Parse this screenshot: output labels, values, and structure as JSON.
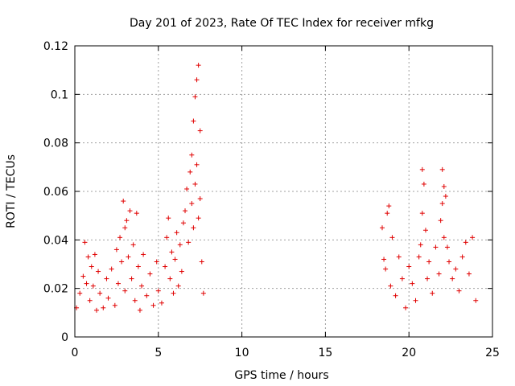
{
  "chart_data": {
    "type": "scatter",
    "title": "Day 201 of 2023, Rate Of TEC Index for receiver mfkg",
    "xlabel": "GPS time / hours",
    "ylabel": "ROTI / TECUs",
    "xlim": [
      0,
      25
    ],
    "ylim": [
      0,
      0.12
    ],
    "x_ticks": [
      "0",
      "5",
      "10",
      "15",
      "20",
      "25"
    ],
    "y_ticks": [
      "0",
      "0.02",
      "0.04",
      "0.06",
      "0.08",
      "0.1",
      "0.12"
    ],
    "grid": true,
    "marker": "+",
    "colors": {
      "points": "#e00000"
    },
    "series": [
      {
        "x": [
          0.1,
          0.3,
          0.5,
          0.6,
          0.7,
          0.8,
          0.9,
          1.0,
          1.1,
          1.2,
          1.3,
          1.4,
          1.5,
          1.7,
          1.9,
          2.0,
          2.2,
          2.4,
          2.5,
          2.6,
          2.7,
          2.8,
          2.9,
          3.0,
          3.0,
          3.1,
          3.2,
          3.3,
          3.4,
          3.5,
          3.6,
          3.7,
          3.8,
          3.9,
          4.0,
          4.1,
          4.3,
          4.5,
          4.7,
          4.9,
          5.0,
          5.2,
          5.4,
          5.5,
          5.6,
          5.7,
          5.8,
          5.9,
          6.0,
          6.1,
          6.2,
          6.3,
          6.4,
          6.5,
          6.6,
          6.7,
          6.8,
          6.9,
          7.0,
          7.0,
          7.1,
          7.1,
          7.2,
          7.2,
          7.3,
          7.3,
          7.4,
          7.4,
          7.5,
          7.5,
          7.6,
          7.7,
          18.4,
          18.5,
          18.6,
          18.7,
          18.8,
          18.9,
          19.0,
          19.2,
          19.4,
          19.6,
          19.8,
          20.0,
          20.2,
          20.4,
          20.6,
          20.7,
          20.8,
          20.8,
          20.9,
          21.0,
          21.1,
          21.2,
          21.4,
          21.6,
          21.8,
          21.9,
          22.0,
          22.0,
          22.1,
          22.1,
          22.2,
          22.3,
          22.4,
          22.6,
          22.8,
          23.0,
          23.2,
          23.4,
          23.6,
          23.8,
          24.0
        ],
        "y": [
          0.012,
          0.018,
          0.025,
          0.039,
          0.022,
          0.033,
          0.015,
          0.029,
          0.021,
          0.034,
          0.011,
          0.027,
          0.018,
          0.012,
          0.024,
          0.016,
          0.028,
          0.013,
          0.036,
          0.022,
          0.041,
          0.031,
          0.056,
          0.045,
          0.019,
          0.048,
          0.033,
          0.052,
          0.024,
          0.038,
          0.015,
          0.051,
          0.029,
          0.011,
          0.021,
          0.034,
          0.017,
          0.026,
          0.013,
          0.031,
          0.019,
          0.014,
          0.029,
          0.041,
          0.049,
          0.024,
          0.035,
          0.018,
          0.032,
          0.043,
          0.021,
          0.038,
          0.027,
          0.047,
          0.052,
          0.061,
          0.039,
          0.068,
          0.075,
          0.055,
          0.089,
          0.045,
          0.099,
          0.063,
          0.106,
          0.071,
          0.112,
          0.049,
          0.085,
          0.057,
          0.031,
          0.018,
          0.045,
          0.032,
          0.028,
          0.051,
          0.054,
          0.021,
          0.041,
          0.017,
          0.033,
          0.024,
          0.012,
          0.029,
          0.022,
          0.015,
          0.033,
          0.038,
          0.069,
          0.051,
          0.063,
          0.044,
          0.024,
          0.031,
          0.018,
          0.037,
          0.026,
          0.048,
          0.069,
          0.055,
          0.062,
          0.041,
          0.058,
          0.037,
          0.031,
          0.024,
          0.028,
          0.019,
          0.033,
          0.039,
          0.026,
          0.041,
          0.015
        ]
      }
    ]
  }
}
